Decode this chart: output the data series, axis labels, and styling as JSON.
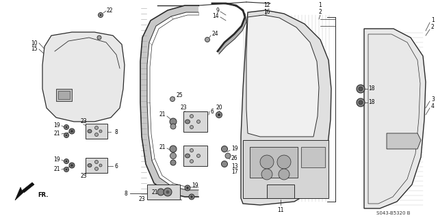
{
  "bg_color": "#ffffff",
  "diagram_code": "S043-B5320 B",
  "line_color": "#2a2a2a",
  "gray_light": "#c8c8c8",
  "gray_mid": "#a0a0a0",
  "gray_dark": "#707070"
}
